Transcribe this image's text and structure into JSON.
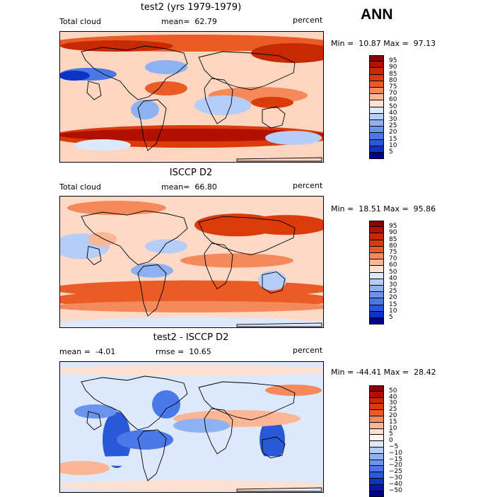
{
  "header": {
    "season": "ANN"
  },
  "panels": [
    {
      "title": "test2 (yrs 1979-1979)",
      "left": "Total cloud",
      "center": "mean=  62.79",
      "right": "percent",
      "minmax": "Min =  10.87 Max =  97.13",
      "cbar_labels": [
        "95",
        "90",
        "85",
        "80",
        "75",
        "70",
        "60",
        "50",
        "40",
        "30",
        "25",
        "20",
        "15",
        "10",
        "5"
      ],
      "cbar_colors": [
        "#8b0000",
        "#b01000",
        "#c52a04",
        "#db3b0a",
        "#ea5b26",
        "#f48a5c",
        "#fbb795",
        "#fde1d2",
        "#dde8fb",
        "#b6cdf7",
        "#8eb1f1",
        "#6b95ec",
        "#4a78e8",
        "#2a59d7",
        "#0c33c4",
        "#00008b"
      ]
    },
    {
      "title": "ISCCP D2",
      "left": "Total cloud",
      "center": "mean=  66.80",
      "right": "percent",
      "minmax": "Min =  18.51 Max =  95.86",
      "cbar_labels": [
        "95",
        "90",
        "85",
        "80",
        "75",
        "70",
        "60",
        "50",
        "40",
        "30",
        "25",
        "20",
        "15",
        "10",
        "5"
      ],
      "cbar_colors": [
        "#8b0000",
        "#b01000",
        "#c52a04",
        "#db3b0a",
        "#ea5b26",
        "#f48a5c",
        "#fbb795",
        "#fde1d2",
        "#dde8fb",
        "#b6cdf7",
        "#8eb1f1",
        "#6b95ec",
        "#4a78e8",
        "#2a59d7",
        "#0c33c4",
        "#00008b"
      ]
    },
    {
      "title": "test2 - ISCCP D2",
      "left": "mean =  -4.01",
      "center": "rmse =  10.65",
      "right": "percent",
      "minmax": "Min = -44.41 Max =  28.42",
      "cbar_labels": [
        "50",
        "40",
        "30",
        "25",
        "20",
        "15",
        "10",
        "5",
        "0",
        "−5",
        "−10",
        "−15",
        "−20",
        "−25",
        "−30",
        "−40",
        "−50"
      ],
      "cbar_colors": [
        "#8b0000",
        "#b01000",
        "#c52a04",
        "#db3b0a",
        "#ea5b26",
        "#f48a5c",
        "#fbb795",
        "#fde1d2",
        "#fff5f0",
        "#dde8fb",
        "#b6cdf7",
        "#8eb1f1",
        "#6b95ec",
        "#4a78e8",
        "#2a59d7",
        "#0c33c4",
        "#0a14a8",
        "#00008b"
      ]
    }
  ],
  "chart_data": [
    {
      "type": "heatmap",
      "title": "test2 (yrs 1979-1979)",
      "variable": "Total cloud",
      "units": "percent",
      "mean": 62.79,
      "min": 10.87,
      "max": 97.13,
      "levels": [
        5,
        10,
        15,
        20,
        25,
        30,
        40,
        50,
        60,
        70,
        75,
        80,
        85,
        90,
        95
      ]
    },
    {
      "type": "heatmap",
      "title": "ISCCP D2",
      "variable": "Total cloud",
      "units": "percent",
      "mean": 66.8,
      "min": 18.51,
      "max": 95.86,
      "levels": [
        5,
        10,
        15,
        20,
        25,
        30,
        40,
        50,
        60,
        70,
        75,
        80,
        85,
        90,
        95
      ]
    },
    {
      "type": "heatmap",
      "title": "test2 - ISCCP D2",
      "units": "percent",
      "mean": -4.01,
      "rmse": 10.65,
      "min": -44.41,
      "max": 28.42,
      "levels": [
        -50,
        -40,
        -30,
        -25,
        -20,
        -15,
        -10,
        -5,
        0,
        5,
        10,
        15,
        20,
        25,
        30,
        40,
        50
      ]
    }
  ]
}
